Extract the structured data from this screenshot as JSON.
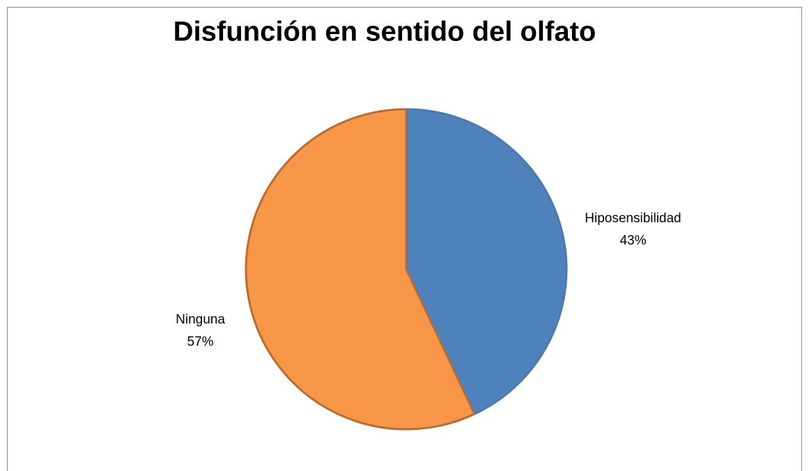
{
  "chart_data": {
    "type": "pie",
    "title": "Disfunción en sentido del olfato",
    "categories": [
      "Hiposensibilidad",
      "Ninguna"
    ],
    "values": [
      43,
      57
    ],
    "value_labels": [
      "43%",
      "57%"
    ],
    "colors": [
      "#4f81bd",
      "#f79646"
    ]
  }
}
